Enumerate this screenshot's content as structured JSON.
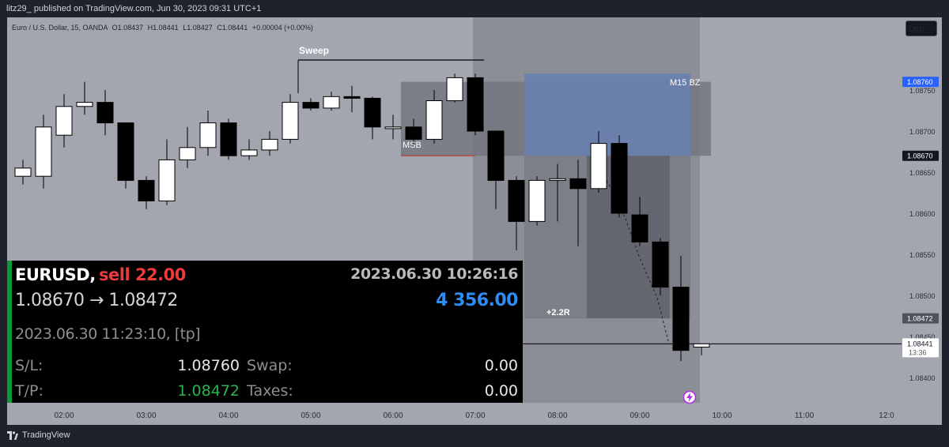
{
  "header": {
    "publish_line": "litz29_ published on TradingView.com, Jun 30, 2023 09:31 UTC+1"
  },
  "legend": {
    "symbol": "Euro / U.S. Dollar, 15, OANDA",
    "open": "O1.08437",
    "high": "H1.08441",
    "low": "L1.08427",
    "close": "C1.08441",
    "change": "+0.00004 (+0.00%)"
  },
  "currency_button": "USD",
  "footer": {
    "brand": "TradingView"
  },
  "colors": {
    "chart_bg": "#a3a6af",
    "shaded_bg": "#8b8e97",
    "box_grey": "#74777f",
    "zone_blue": "#6a7fae",
    "bull": "#ffffff",
    "bear": "#000000",
    "price_tag_blue": "#2962ff",
    "panel_green": "#0c9a35",
    "msb_red": "#c0392b"
  },
  "chart_data": {
    "type": "candlestick",
    "x_labels": [
      "02:00",
      "03:00",
      "04:00",
      "05:00",
      "06:00",
      "07:00",
      "08:00",
      "09:00",
      "10:00",
      "11:00",
      "12:0"
    ],
    "y_ticks": [
      1.084,
      1.0845,
      1.085,
      1.0855,
      1.086,
      1.0865,
      1.087,
      1.0875
    ],
    "y_tick_labels": [
      "1.08400",
      "1.08450",
      "1.08500",
      "1.08550",
      "1.08600",
      "1.08650",
      "1.08700",
      "1.08750"
    ],
    "ylim": [
      1.0838,
      1.0878
    ],
    "interval_minutes": 15,
    "candles": [
      {
        "t": "01:30",
        "o": 1.08645,
        "h": 1.08665,
        "l": 1.08635,
        "c": 1.08655
      },
      {
        "t": "01:45",
        "o": 1.08645,
        "h": 1.0872,
        "l": 1.0863,
        "c": 1.08705
      },
      {
        "t": "02:00",
        "o": 1.08695,
        "h": 1.08745,
        "l": 1.0868,
        "c": 1.0873
      },
      {
        "t": "02:15",
        "o": 1.0873,
        "h": 1.0876,
        "l": 1.0872,
        "c": 1.08735
      },
      {
        "t": "02:30",
        "o": 1.08735,
        "h": 1.0875,
        "l": 1.08695,
        "c": 1.0871
      },
      {
        "t": "02:45",
        "o": 1.0871,
        "h": 1.0871,
        "l": 1.0863,
        "c": 1.0864
      },
      {
        "t": "03:00",
        "o": 1.0864,
        "h": 1.08645,
        "l": 1.08605,
        "c": 1.08615
      },
      {
        "t": "03:15",
        "o": 1.08615,
        "h": 1.0869,
        "l": 1.0861,
        "c": 1.08665
      },
      {
        "t": "03:30",
        "o": 1.08665,
        "h": 1.08705,
        "l": 1.08655,
        "c": 1.0868
      },
      {
        "t": "03:45",
        "o": 1.0868,
        "h": 1.08725,
        "l": 1.0867,
        "c": 1.0871
      },
      {
        "t": "04:00",
        "o": 1.0871,
        "h": 1.08715,
        "l": 1.08665,
        "c": 1.0867
      },
      {
        "t": "04:15",
        "o": 1.0867,
        "h": 1.0869,
        "l": 1.08665,
        "c": 1.08677
      },
      {
        "t": "04:30",
        "o": 1.08677,
        "h": 1.087,
        "l": 1.0867,
        "c": 1.0869
      },
      {
        "t": "04:45",
        "o": 1.0869,
        "h": 1.08745,
        "l": 1.08685,
        "c": 1.08735
      },
      {
        "t": "05:00",
        "o": 1.08735,
        "h": 1.0874,
        "l": 1.08725,
        "c": 1.08728
      },
      {
        "t": "05:15",
        "o": 1.08728,
        "h": 1.08748,
        "l": 1.08725,
        "c": 1.08742
      },
      {
        "t": "05:30",
        "o": 1.08742,
        "h": 1.08755,
        "l": 1.08723,
        "c": 1.0874
      },
      {
        "t": "05:45",
        "o": 1.0874,
        "h": 1.08742,
        "l": 1.0869,
        "c": 1.08705
      },
      {
        "t": "06:00",
        "o": 1.08703,
        "h": 1.0872,
        "l": 1.0869,
        "c": 1.08705
      },
      {
        "t": "06:15",
        "o": 1.08705,
        "h": 1.08715,
        "l": 1.08682,
        "c": 1.0869
      },
      {
        "t": "06:30",
        "o": 1.0869,
        "h": 1.0875,
        "l": 1.08685,
        "c": 1.08737
      },
      {
        "t": "06:45",
        "o": 1.08737,
        "h": 1.0877,
        "l": 1.08735,
        "c": 1.08765
      },
      {
        "t": "07:00",
        "o": 1.08765,
        "h": 1.0877,
        "l": 1.08695,
        "c": 1.087
      },
      {
        "t": "07:15",
        "o": 1.087,
        "h": 1.087,
        "l": 1.08605,
        "c": 1.0864
      },
      {
        "t": "07:30",
        "o": 1.0864,
        "h": 1.08645,
        "l": 1.08555,
        "c": 1.0859
      },
      {
        "t": "07:45",
        "o": 1.0859,
        "h": 1.08645,
        "l": 1.08585,
        "c": 1.0864
      },
      {
        "t": "08:00",
        "o": 1.0864,
        "h": 1.0866,
        "l": 1.0859,
        "c": 1.08642
      },
      {
        "t": "08:15",
        "o": 1.08642,
        "h": 1.08665,
        "l": 1.0856,
        "c": 1.0863
      },
      {
        "t": "08:30",
        "o": 1.0863,
        "h": 1.087,
        "l": 1.08625,
        "c": 1.08685
      },
      {
        "t": "08:45",
        "o": 1.08685,
        "h": 1.08695,
        "l": 1.08595,
        "c": 1.086
      },
      {
        "t": "09:00",
        "o": 1.08598,
        "h": 1.0862,
        "l": 1.0856,
        "c": 1.08565
      },
      {
        "t": "09:15",
        "o": 1.08565,
        "h": 1.0857,
        "l": 1.085,
        "c": 1.0851
      },
      {
        "t": "09:30",
        "o": 1.0851,
        "h": 1.08548,
        "l": 1.0842,
        "c": 1.08433
      },
      {
        "t": "09:45",
        "o": 1.08437,
        "h": 1.08441,
        "l": 1.08427,
        "c": 1.08441
      }
    ],
    "price_labels": [
      {
        "text": "1.08760",
        "value": 1.0876,
        "style": "blue"
      },
      {
        "text": "1.08670",
        "value": 1.0867,
        "style": "dark"
      },
      {
        "text": "1.08472",
        "value": 1.08472,
        "style": "grey"
      },
      {
        "text": "1.08441",
        "value": 1.08441,
        "style": "white"
      }
    ],
    "countdown": "13:36",
    "annotations": [
      "Sweep",
      "MSB",
      "M15 BZ",
      "+2.2R"
    ],
    "grid": false
  },
  "trade_panel": {
    "symbol": "EURUSD",
    "separator": ",",
    "side": "sell 22.00",
    "open_time": "2023.06.30 10:26:16",
    "price_route": "1.08670 → 1.08472",
    "profit": "4 356.00",
    "close_info": "2023.06.30 11:23:10, [tp]",
    "sl_label": "S/L:",
    "sl_value": "1.08760",
    "swap_label": "Swap:",
    "swap_value": "0.00",
    "tp_label": "T/P:",
    "tp_value": "1.08472",
    "taxes_label": "Taxes:",
    "taxes_value": "0.00"
  }
}
